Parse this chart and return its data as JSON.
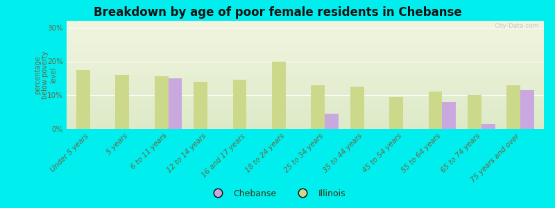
{
  "title": "Breakdown by age of poor female residents in Chebanse",
  "ylabel": "percentage\nbelow poverty\nlevel",
  "background_color": "#00EEEE",
  "categories": [
    "Under 5 years",
    "5 years",
    "6 to 11 years",
    "12 to 14 years",
    "16 and 17 years",
    "18 to 24 years",
    "25 to 34 years",
    "35 to 44 years",
    "45 to 54 years",
    "55 to 64 years",
    "65 to 74 years",
    "75 years and over"
  ],
  "chebanse_values": [
    null,
    null,
    15.0,
    null,
    null,
    null,
    4.5,
    null,
    null,
    8.0,
    1.5,
    11.5
  ],
  "illinois_values": [
    17.5,
    16.0,
    15.5,
    14.0,
    14.5,
    20.0,
    13.0,
    12.5,
    9.5,
    11.0,
    10.0,
    13.0
  ],
  "chebanse_color": "#c9a8e0",
  "illinois_color": "#ccd98a",
  "bar_width": 0.35,
  "ylim": [
    0,
    32
  ],
  "yticks": [
    0,
    10,
    20,
    30
  ],
  "ytick_labels": [
    "0%",
    "10%",
    "20%",
    "30%"
  ],
  "title_fontsize": 12,
  "tick_fontsize": 7.5,
  "ylabel_fontsize": 7,
  "legend_labels": [
    "Chebanse",
    "Illinois"
  ],
  "grad_top": "#f2f5e0",
  "grad_bottom": "#ddeac8"
}
